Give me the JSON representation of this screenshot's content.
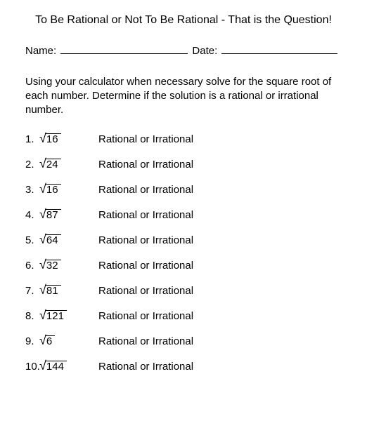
{
  "title": "To Be Rational or Not To Be Rational - That is the Question!",
  "name_label": "Name:",
  "date_label": "Date:",
  "instructions": "Using your calculator when necessary solve for the square root of each number.  Determine if the solution is a rational or irrational number.",
  "choice_label": "Rational or Irrational",
  "problems": [
    {
      "n": "1.",
      "radicand": "16"
    },
    {
      "n": "2.",
      "radicand": "24"
    },
    {
      "n": "3.",
      "radicand": "16"
    },
    {
      "n": "4.",
      "radicand": "87"
    },
    {
      "n": "5.",
      "radicand": "64"
    },
    {
      "n": "6.",
      "radicand": "32"
    },
    {
      "n": "7.",
      "radicand": "81"
    },
    {
      "n": "8.",
      "radicand": "121"
    },
    {
      "n": "9.",
      "radicand": "6"
    },
    {
      "n": "10.",
      "radicand": "144"
    }
  ]
}
